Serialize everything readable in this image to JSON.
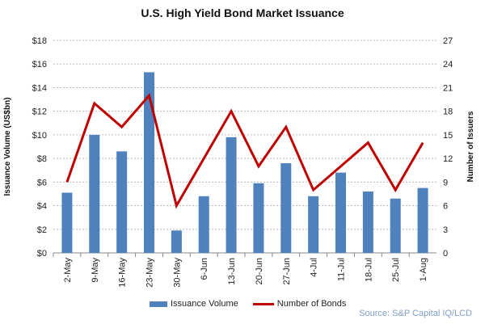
{
  "chart_data": {
    "type": "bar+line",
    "title": "U.S. High Yield Bond Market Issuance",
    "categories": [
      "2-May",
      "9-May",
      "16-May",
      "23-May",
      "30-May",
      "6-Jun",
      "13-Jun",
      "20-Jun",
      "27-Jun",
      "4-Jul",
      "11-Jul",
      "18-Jul",
      "25-Jul",
      "1-Aug"
    ],
    "series": [
      {
        "name": "Issuance Volume",
        "type": "bar",
        "axis": "left",
        "color": "#4f81bd",
        "values": [
          5.1,
          10.0,
          8.6,
          15.3,
          1.9,
          4.8,
          9.8,
          5.9,
          7.6,
          4.8,
          6.8,
          5.2,
          4.6,
          5.5
        ]
      },
      {
        "name": "Number of Bonds",
        "type": "line",
        "axis": "right",
        "color": "#c00000",
        "values": [
          9,
          19,
          16,
          20,
          6,
          12,
          18,
          11,
          16,
          8,
          11,
          14,
          8,
          14
        ]
      }
    ],
    "ylabel": "Issuance Volume (US$bn)",
    "y2label": "Number of Issuers",
    "ylim": [
      0,
      18
    ],
    "y2lim": [
      0,
      27
    ],
    "yticks": [
      "$0",
      "$2",
      "$4",
      "$6",
      "$8",
      "$10",
      "$12",
      "$14",
      "$16",
      "$18"
    ],
    "y2ticks": [
      "0",
      "3",
      "6",
      "9",
      "12",
      "15",
      "18",
      "21",
      "24",
      "27"
    ],
    "grid": true,
    "legend": "bottom",
    "source": "Source: S&P Capital IQ/LCD"
  }
}
